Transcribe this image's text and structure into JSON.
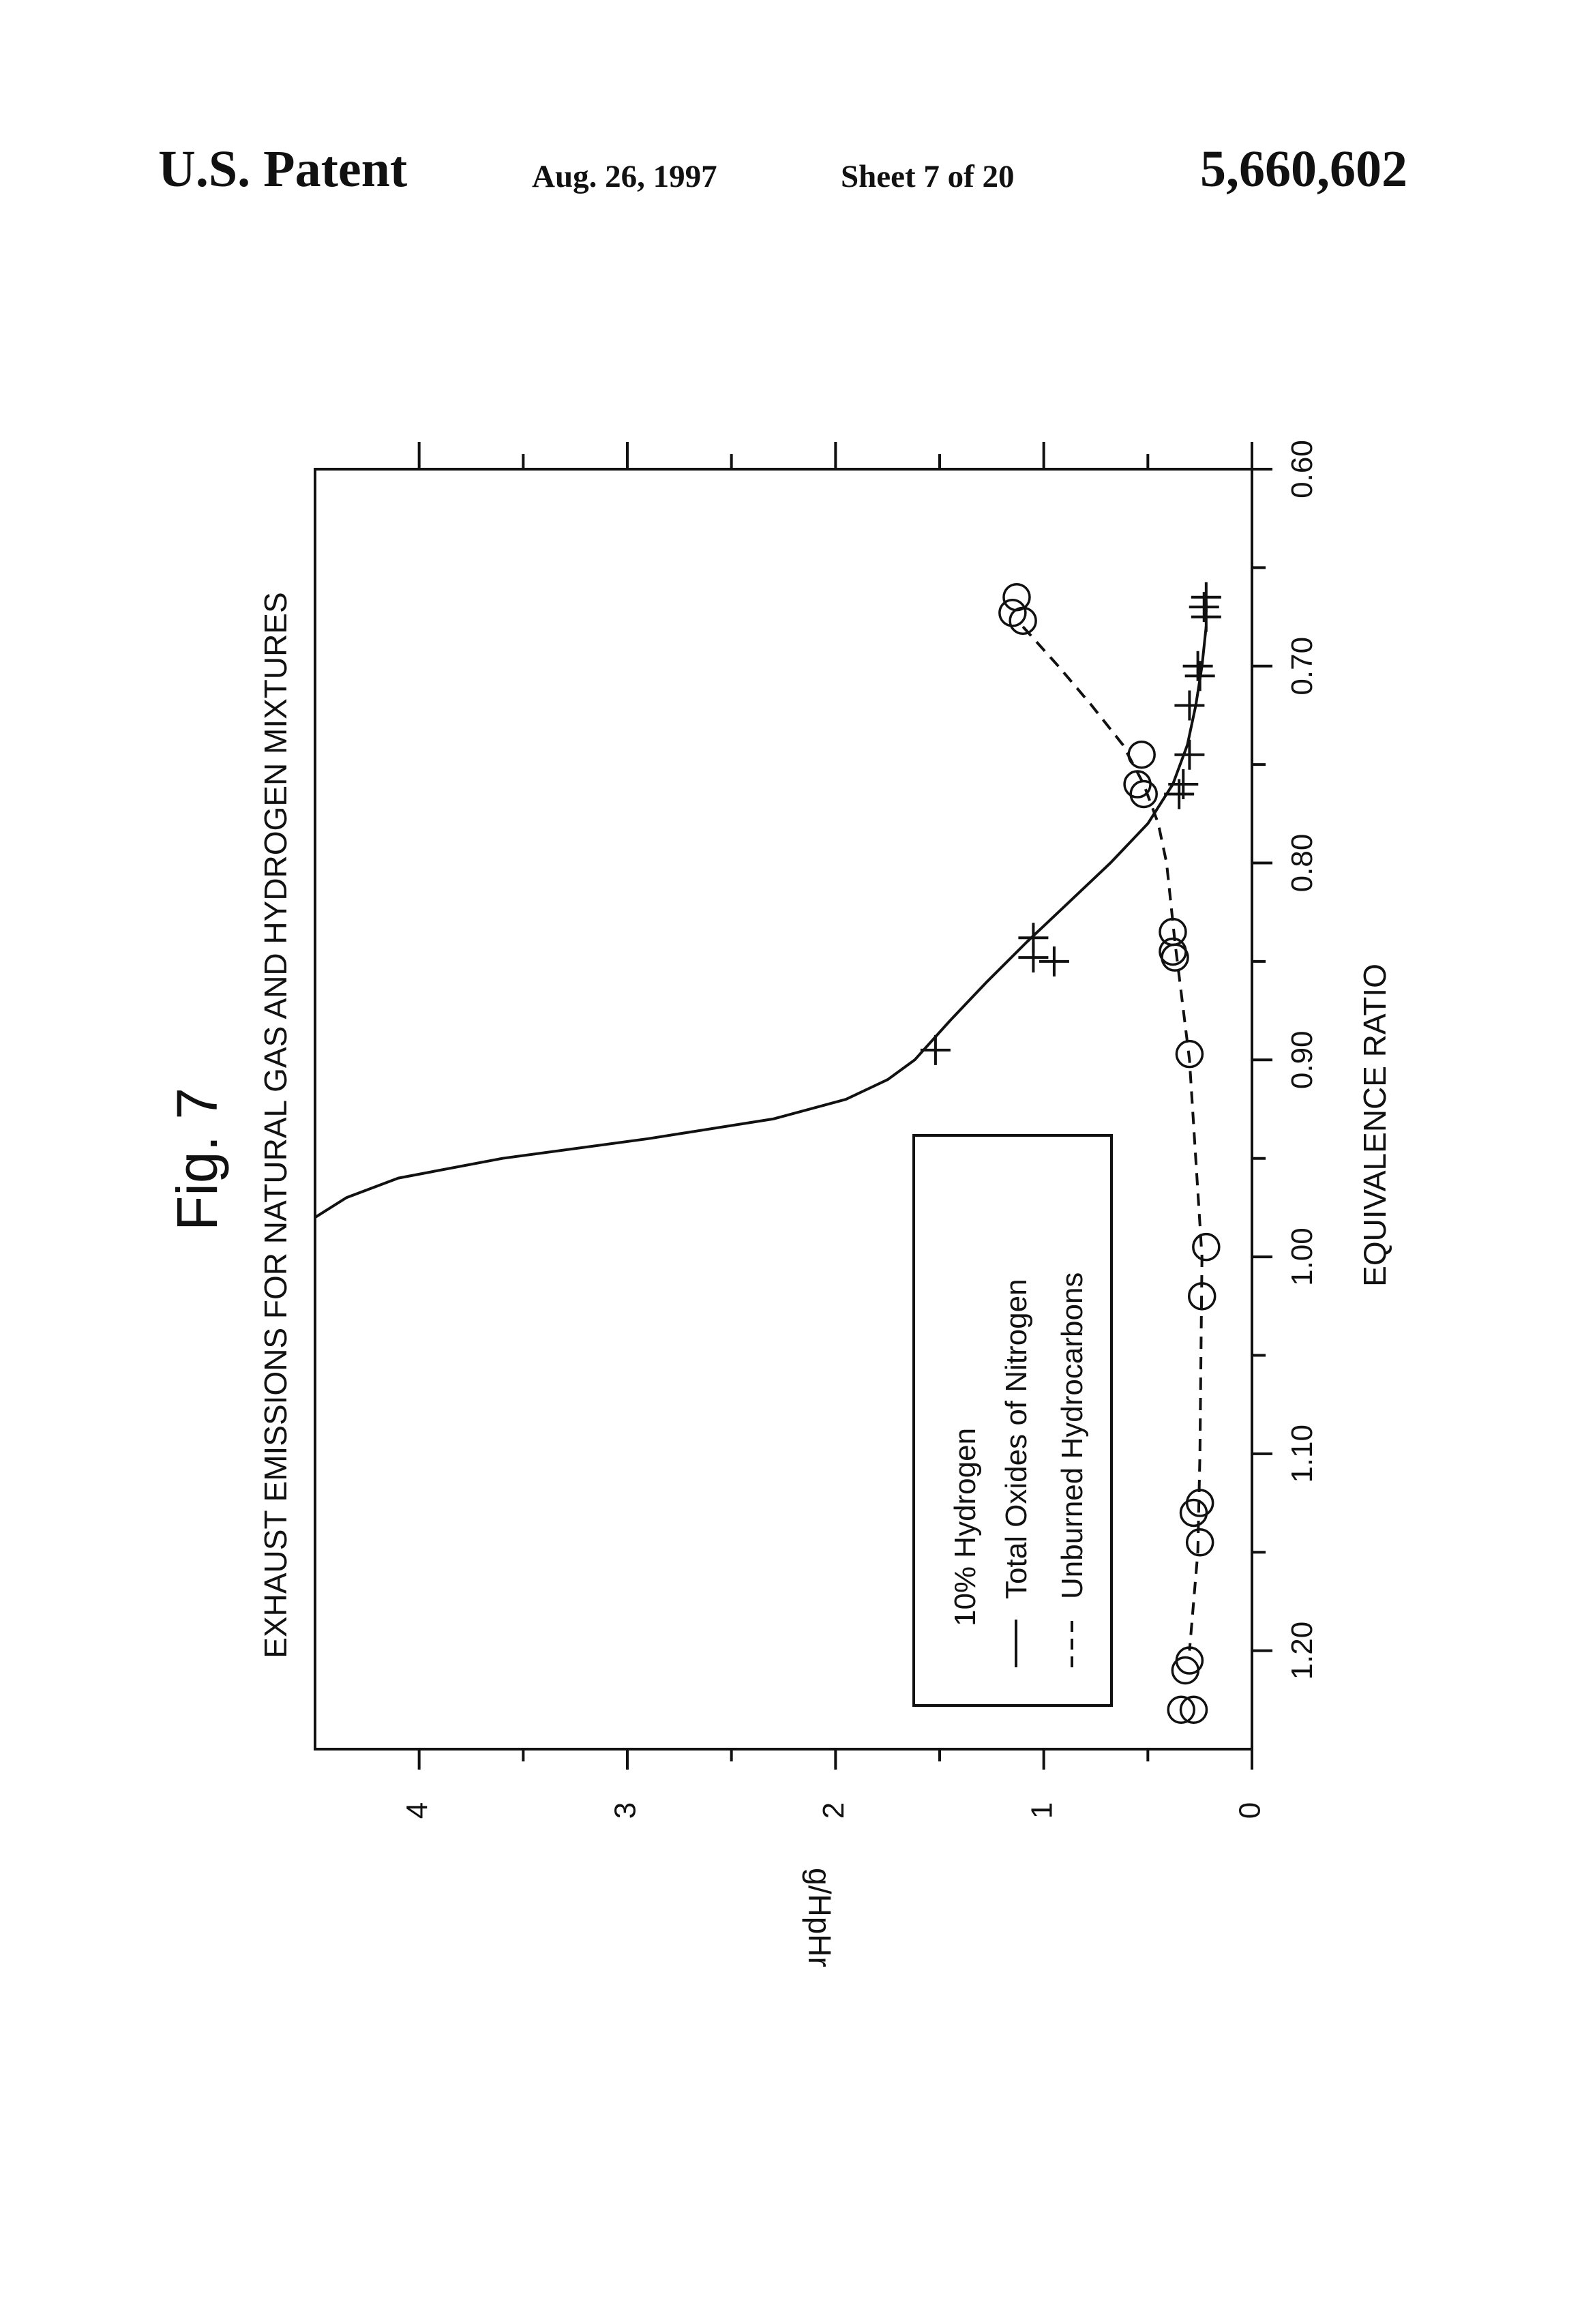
{
  "header": {
    "patent_label": "U.S. Patent",
    "date": "Aug. 26, 1997",
    "sheet": "Sheet 7 of 20",
    "patent_number": "5,660,602"
  },
  "figure": {
    "label": "Fig. 7"
  },
  "chart_data": {
    "type": "line",
    "title": "EXHAUST EMISSIONS FOR NATURAL GAS AND HYDROGEN MIXTURES",
    "xlabel": "EQUIVALENCE RATIO",
    "ylabel": "g/HpHr",
    "xlim": [
      0.6,
      1.25
    ],
    "ylim": [
      0,
      4.5
    ],
    "x_direction": "reversed",
    "x_ticks": [
      0.6,
      0.7,
      0.8,
      0.9,
      1.0,
      1.1,
      1.2
    ],
    "x_tick_labels": [
      "0.60",
      "0.70",
      "0.80",
      "0.90",
      "1.00",
      "1.10",
      "1.20"
    ],
    "y_ticks": [
      0,
      1,
      2,
      3,
      4
    ],
    "y_tick_labels": [
      "0",
      "1",
      "2",
      "3",
      "4"
    ],
    "grid": false,
    "legend": {
      "title": "10% Hydrogen",
      "placement": "lower-right",
      "entries": [
        "Total Oxides of Nitrogen",
        "Unburned Hydrocarbons"
      ]
    },
    "series": [
      {
        "name": "Total Oxides of Nitrogen",
        "marker": "plus",
        "line": "solid",
        "points": [
          {
            "x": 0.665,
            "y": 0.22
          },
          {
            "x": 0.67,
            "y": 0.23
          },
          {
            "x": 0.675,
            "y": 0.22
          },
          {
            "x": 0.7,
            "y": 0.26
          },
          {
            "x": 0.705,
            "y": 0.25
          },
          {
            "x": 0.72,
            "y": 0.3
          },
          {
            "x": 0.745,
            "y": 0.3
          },
          {
            "x": 0.76,
            "y": 0.33
          },
          {
            "x": 0.765,
            "y": 0.35
          },
          {
            "x": 0.838,
            "y": 1.05
          },
          {
            "x": 0.848,
            "y": 1.05
          },
          {
            "x": 0.85,
            "y": 0.95
          },
          {
            "x": 0.895,
            "y": 1.52
          }
        ],
        "curve": [
          {
            "x": 0.68,
            "y": 0.22
          },
          {
            "x": 0.7,
            "y": 0.24
          },
          {
            "x": 0.72,
            "y": 0.27
          },
          {
            "x": 0.74,
            "y": 0.31
          },
          {
            "x": 0.76,
            "y": 0.38
          },
          {
            "x": 0.78,
            "y": 0.5
          },
          {
            "x": 0.8,
            "y": 0.68
          },
          {
            "x": 0.82,
            "y": 0.88
          },
          {
            "x": 0.84,
            "y": 1.08
          },
          {
            "x": 0.86,
            "y": 1.27
          },
          {
            "x": 0.88,
            "y": 1.45
          },
          {
            "x": 0.9,
            "y": 1.62
          },
          {
            "x": 0.91,
            "y": 1.75
          },
          {
            "x": 0.92,
            "y": 1.95
          },
          {
            "x": 0.93,
            "y": 2.3
          },
          {
            "x": 0.94,
            "y": 2.9
          },
          {
            "x": 0.95,
            "y": 3.6
          },
          {
            "x": 0.96,
            "y": 4.1
          },
          {
            "x": 0.97,
            "y": 4.35
          },
          {
            "x": 0.98,
            "y": 4.5
          }
        ]
      },
      {
        "name": "Unburned Hydrocarbons",
        "marker": "circle",
        "line": "dashed",
        "points": [
          {
            "x": 0.665,
            "y": 1.13
          },
          {
            "x": 0.673,
            "y": 1.15
          },
          {
            "x": 0.677,
            "y": 1.1
          },
          {
            "x": 0.745,
            "y": 0.53
          },
          {
            "x": 0.76,
            "y": 0.55
          },
          {
            "x": 0.765,
            "y": 0.52
          },
          {
            "x": 0.835,
            "y": 0.38
          },
          {
            "x": 0.845,
            "y": 0.38
          },
          {
            "x": 0.848,
            "y": 0.37
          },
          {
            "x": 0.897,
            "y": 0.3
          },
          {
            "x": 0.995,
            "y": 0.22
          },
          {
            "x": 1.02,
            "y": 0.24
          },
          {
            "x": 1.125,
            "y": 0.25
          },
          {
            "x": 1.13,
            "y": 0.28
          },
          {
            "x": 1.145,
            "y": 0.25
          },
          {
            "x": 1.205,
            "y": 0.3
          },
          {
            "x": 1.21,
            "y": 0.32
          },
          {
            "x": 1.23,
            "y": 0.28
          },
          {
            "x": 1.23,
            "y": 0.34
          }
        ],
        "curve": [
          {
            "x": 0.68,
            "y": 1.1
          },
          {
            "x": 0.7,
            "y": 0.93
          },
          {
            "x": 0.72,
            "y": 0.77
          },
          {
            "x": 0.74,
            "y": 0.62
          },
          {
            "x": 0.76,
            "y": 0.52
          },
          {
            "x": 0.78,
            "y": 0.45
          },
          {
            "x": 0.8,
            "y": 0.41
          },
          {
            "x": 0.84,
            "y": 0.37
          },
          {
            "x": 0.9,
            "y": 0.3
          },
          {
            "x": 1.0,
            "y": 0.24
          },
          {
            "x": 1.1,
            "y": 0.25
          },
          {
            "x": 1.15,
            "y": 0.26
          },
          {
            "x": 1.2,
            "y": 0.3
          }
        ]
      }
    ]
  }
}
